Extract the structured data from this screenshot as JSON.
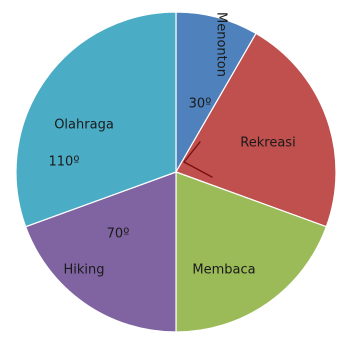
{
  "chart_data": {
    "type": "pie",
    "title": "",
    "start_angle_deg": 0,
    "direction": "clockwise",
    "slices": [
      {
        "name": "Menonton",
        "value": 30,
        "value_label": "30º",
        "color": "#4f81bd"
      },
      {
        "name": "Rekreasi",
        "value": 80,
        "value_label": "",
        "color": "#c0504d"
      },
      {
        "name": "Membaca",
        "value": 70,
        "value_label": "",
        "color": "#9bbb59"
      },
      {
        "name": "Hiking",
        "value": 70,
        "value_label": "70º",
        "color": "#8064a2"
      },
      {
        "name": "Olahraga",
        "value": 110,
        "value_label": "110º",
        "color": "#4bacc6"
      }
    ],
    "unit": "degrees",
    "legend": "none"
  }
}
